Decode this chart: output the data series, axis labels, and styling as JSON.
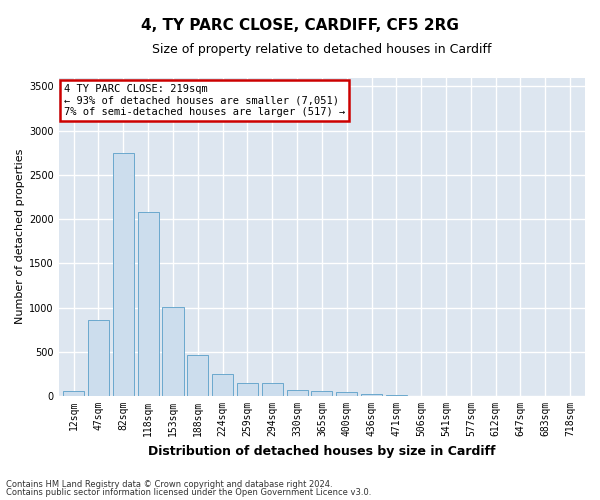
{
  "title": "4, TY PARC CLOSE, CARDIFF, CF5 2RG",
  "subtitle": "Size of property relative to detached houses in Cardiff",
  "xlabel": "Distribution of detached houses by size in Cardiff",
  "ylabel": "Number of detached properties",
  "categories": [
    "12sqm",
    "47sqm",
    "82sqm",
    "118sqm",
    "153sqm",
    "188sqm",
    "224sqm",
    "259sqm",
    "294sqm",
    "330sqm",
    "365sqm",
    "400sqm",
    "436sqm",
    "471sqm",
    "506sqm",
    "541sqm",
    "577sqm",
    "612sqm",
    "647sqm",
    "683sqm",
    "718sqm"
  ],
  "values": [
    52,
    855,
    2750,
    2075,
    1010,
    460,
    250,
    150,
    150,
    65,
    55,
    45,
    20,
    15,
    5,
    3,
    2,
    1,
    1,
    0,
    0
  ],
  "bar_color": "#ccdded",
  "bar_edge_color": "#5a9fc8",
  "annotation_text": "4 TY PARC CLOSE: 219sqm\n← 93% of detached houses are smaller (7,051)\n7% of semi-detached houses are larger (517) →",
  "annotation_box_color": "#ffffff",
  "annotation_box_edge_color": "#cc0000",
  "ylim": [
    0,
    3600
  ],
  "yticks": [
    0,
    500,
    1000,
    1500,
    2000,
    2500,
    3000,
    3500
  ],
  "background_color": "#dde6f0",
  "grid_color": "#ffffff",
  "fig_background": "#ffffff",
  "footnote1": "Contains HM Land Registry data © Crown copyright and database right 2024.",
  "footnote2": "Contains public sector information licensed under the Open Government Licence v3.0.",
  "title_fontsize": 11,
  "subtitle_fontsize": 9,
  "xlabel_fontsize": 9,
  "ylabel_fontsize": 8,
  "tick_fontsize": 7,
  "annot_fontsize": 7.5,
  "footnote_fontsize": 6
}
